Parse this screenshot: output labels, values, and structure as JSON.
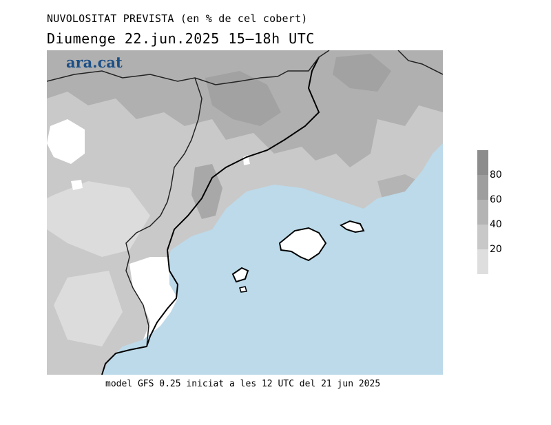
{
  "title": "NUVOLOSITAT PREVISTA (en % de cel cobert)",
  "subtitle": "Diumenge  22.jun.2025 15–18h UTC",
  "logo": "ara.cat",
  "footer": "model GFS 0.25 iniciat a les 12 UTC del 21 jun 2025",
  "legend": {
    "labels": [
      "80",
      "60",
      "40",
      "20"
    ],
    "colors": [
      "#9e9e9e",
      "#b4b4b4",
      "#c8c8c8",
      "#dedede"
    ],
    "top_color": "#8c8c8c"
  },
  "colors": {
    "sea": "#bcdaea",
    "land_base": "#c9c9c9",
    "clear": "#ffffff",
    "coast": "#000000",
    "border": "#333333"
  }
}
